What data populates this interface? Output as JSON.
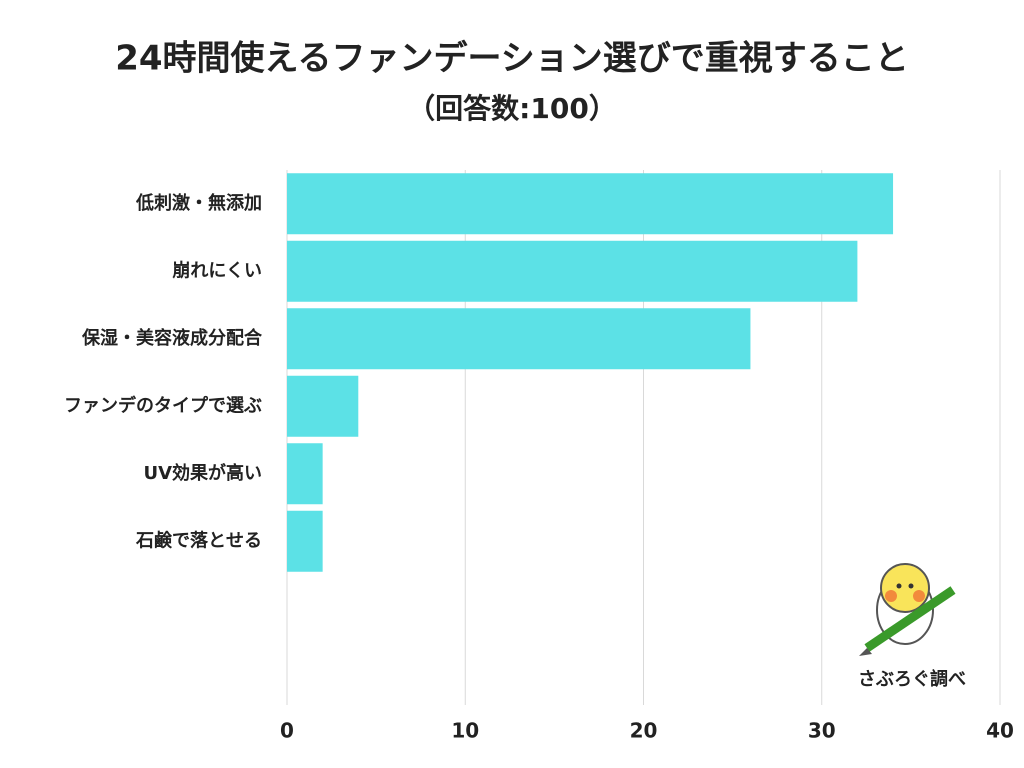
{
  "chart_data": {
    "type": "barh",
    "title": "24時間使えるファンデーション選びで重視すること",
    "subtitle": "（回答数:100）",
    "categories": [
      "低刺激・無添加",
      "崩れにくい",
      "保湿・美容液成分配合",
      "ファンデのタイプで選ぶ",
      "UV効果が高い",
      "石鹸で落とせる"
    ],
    "values": [
      34,
      32,
      26,
      4,
      2,
      2
    ],
    "color": "#5ce1e6",
    "xlim": [
      0,
      40
    ],
    "xticks": [
      0,
      10,
      20,
      30,
      40
    ],
    "grid": true,
    "source": "さぶろぐ調べ"
  }
}
